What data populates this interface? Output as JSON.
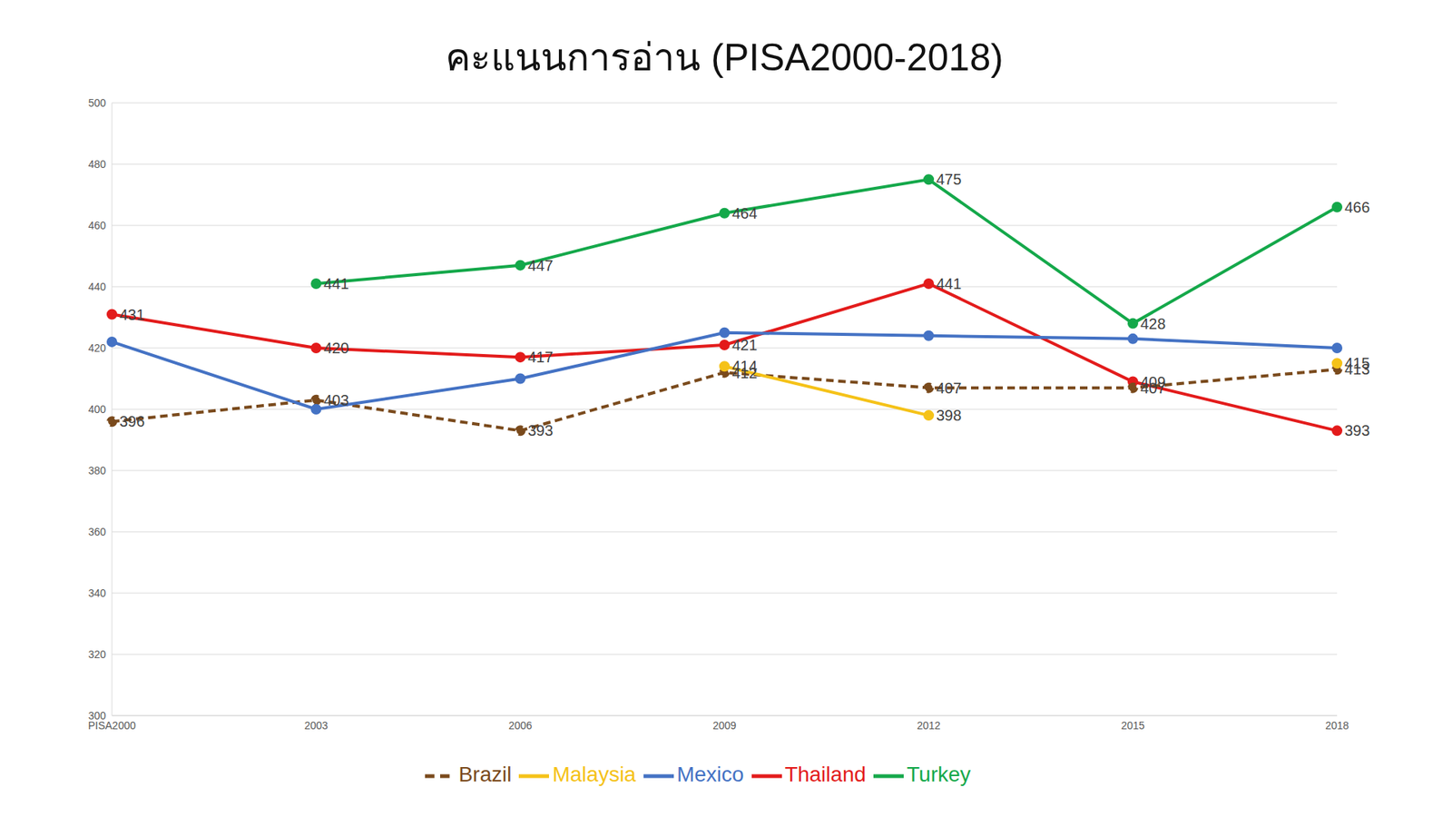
{
  "chart_data": {
    "type": "line",
    "title": "คะแนนการอ่าน (PISA2000-2018)",
    "categories": [
      "PISA2000",
      "2003",
      "2006",
      "2009",
      "2012",
      "2015",
      "2018"
    ],
    "series": [
      {
        "name": "Thailand",
        "color": "#e31b1b",
        "marker": "circle",
        "line_style": "solid",
        "data_labels": true,
        "values": [
          431,
          420,
          417,
          421,
          441,
          409,
          393
        ]
      },
      {
        "name": "Turkey",
        "color": "#14a84a",
        "marker": "circle",
        "line_style": "solid",
        "data_labels": true,
        "values": [
          null,
          441,
          447,
          464,
          475,
          428,
          466
        ]
      },
      {
        "name": "Brazil",
        "color": "#7a4a1c",
        "marker": "circle",
        "line_style": "dashed",
        "data_labels": true,
        "values": [
          396,
          403,
          393,
          412,
          407,
          407,
          413
        ]
      },
      {
        "name": "Malaysia",
        "color": "#f5c218",
        "marker": "circle",
        "line_style": "solid",
        "data_labels": true,
        "values": [
          null,
          null,
          null,
          414,
          398,
          null,
          415
        ]
      },
      {
        "name": "Mexico",
        "color": "#4472c4",
        "marker": "circle",
        "line_style": "solid",
        "data_labels": false,
        "values": [
          422,
          400,
          410,
          425,
          424,
          423,
          420
        ]
      }
    ],
    "ylim": [
      300,
      500
    ],
    "yticks": [
      300,
      320,
      340,
      360,
      380,
      400,
      420,
      440,
      460,
      480,
      500
    ],
    "grid": true,
    "legend": "bottom"
  }
}
